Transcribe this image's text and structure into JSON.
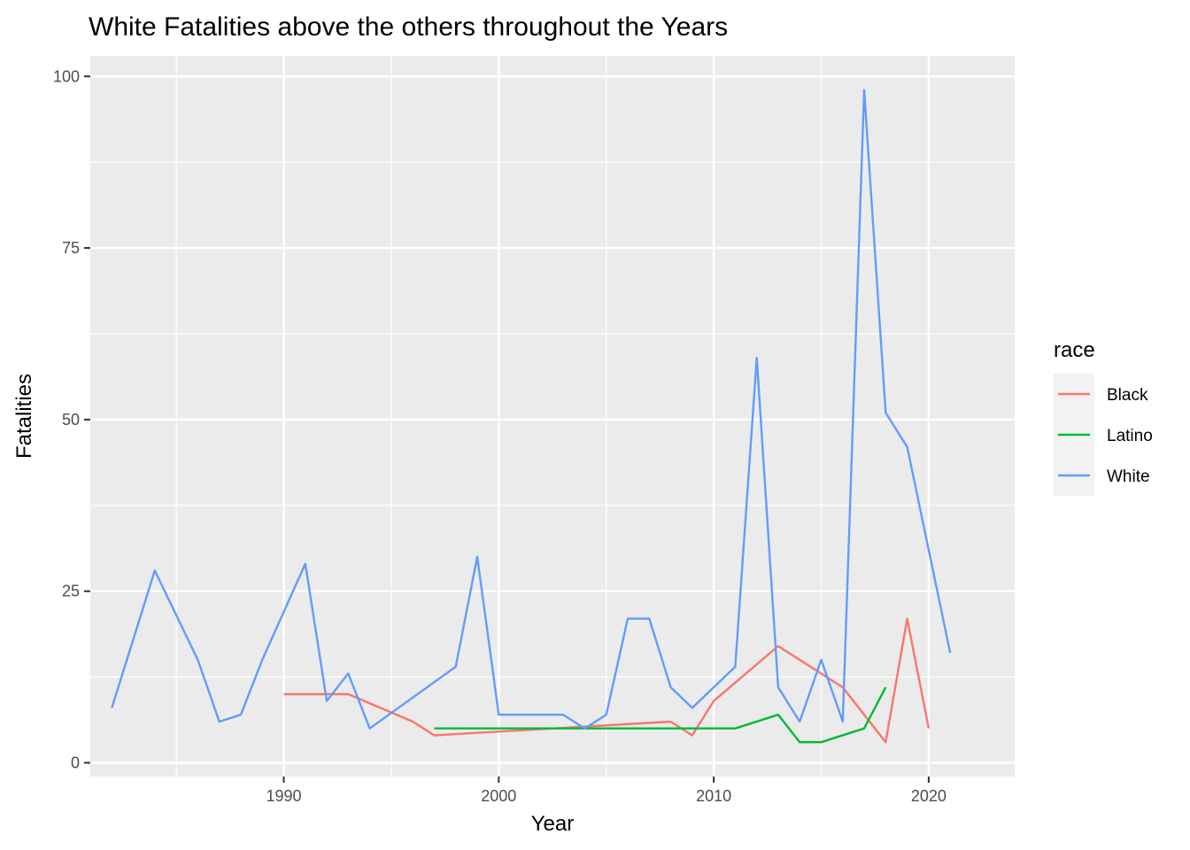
{
  "chart_data": {
    "type": "line",
    "title": "White Fatalities above the others throughout the Years",
    "xlabel": "Year",
    "ylabel": "Fatalities",
    "xlim": [
      1981,
      2024
    ],
    "ylim": [
      -2,
      103
    ],
    "x_ticks": [
      1990,
      2000,
      2010,
      2020
    ],
    "y_ticks": [
      0,
      25,
      50,
      75,
      100
    ],
    "grid": true,
    "legend": {
      "title": "race",
      "position": "right"
    },
    "series": [
      {
        "name": "Black",
        "color": "#F8766D",
        "points": [
          [
            1990,
            10
          ],
          [
            1993,
            10
          ],
          [
            1996,
            6
          ],
          [
            1997,
            4
          ],
          [
            2008,
            6
          ],
          [
            2009,
            4
          ],
          [
            2010,
            9
          ],
          [
            2013,
            17
          ],
          [
            2016,
            11
          ],
          [
            2018,
            3
          ],
          [
            2019,
            21
          ],
          [
            2020,
            5
          ]
        ]
      },
      {
        "name": "Latino",
        "color": "#00BA38",
        "points": [
          [
            1997,
            5
          ],
          [
            2011,
            5
          ],
          [
            2013,
            7
          ],
          [
            2014,
            3
          ],
          [
            2015,
            3
          ],
          [
            2017,
            5
          ],
          [
            2018,
            11
          ]
        ]
      },
      {
        "name": "White",
        "color": "#619CFF",
        "points": [
          [
            1982,
            8
          ],
          [
            1984,
            28
          ],
          [
            1986,
            15
          ],
          [
            1987,
            6
          ],
          [
            1988,
            7
          ],
          [
            1989,
            15
          ],
          [
            1991,
            29
          ],
          [
            1992,
            9
          ],
          [
            1993,
            13
          ],
          [
            1994,
            5
          ],
          [
            1998,
            14
          ],
          [
            1999,
            30
          ],
          [
            2000,
            7
          ],
          [
            2003,
            7
          ],
          [
            2004,
            5
          ],
          [
            2005,
            7
          ],
          [
            2006,
            21
          ],
          [
            2007,
            21
          ],
          [
            2008,
            11
          ],
          [
            2009,
            8
          ],
          [
            2011,
            14
          ],
          [
            2012,
            59
          ],
          [
            2013,
            11
          ],
          [
            2014,
            6
          ],
          [
            2015,
            15
          ],
          [
            2016,
            6
          ],
          [
            2017,
            98
          ],
          [
            2018,
            51
          ],
          [
            2019,
            46
          ],
          [
            2021,
            16
          ]
        ]
      }
    ]
  }
}
